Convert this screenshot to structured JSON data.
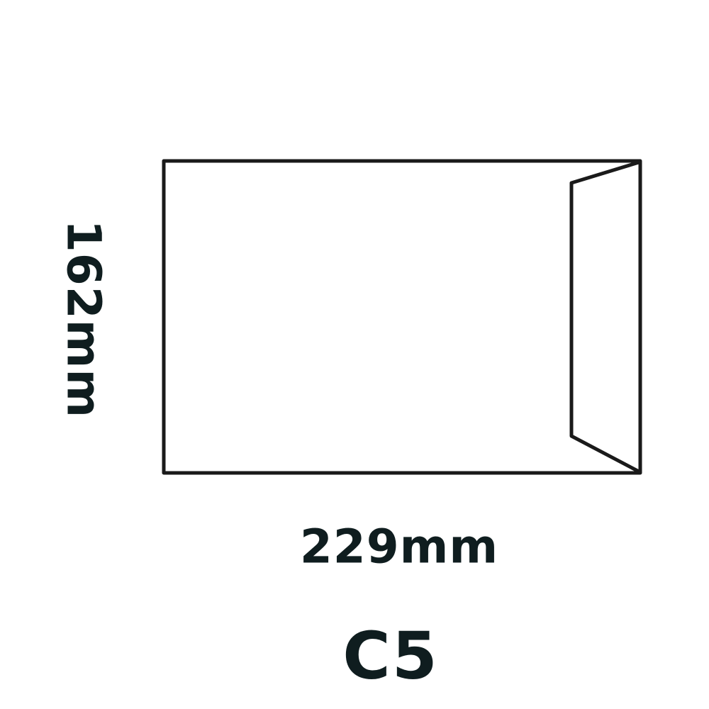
{
  "envelope": {
    "height_label": "162mm",
    "width_label": "229mm",
    "size_name": "C5",
    "line_color": "#1a1a1a",
    "text_color": "#0f1d1f"
  }
}
